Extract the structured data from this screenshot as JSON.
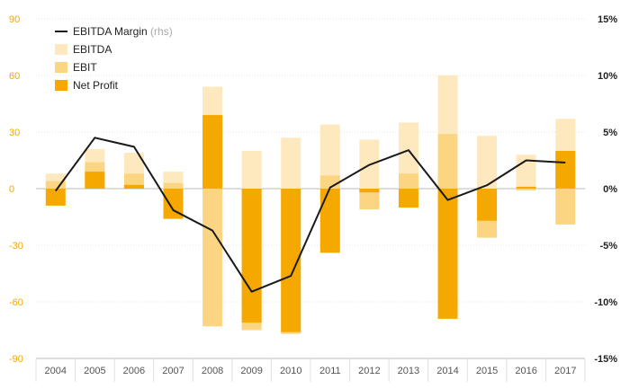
{
  "chart_data": {
    "type": "bar",
    "categories": [
      "2004",
      "2005",
      "2006",
      "2007",
      "2008",
      "2009",
      "2010",
      "2011",
      "2012",
      "2013",
      "2014",
      "2015",
      "2016",
      "2017"
    ],
    "series": [
      {
        "name": "EBITDA",
        "color": "#fde9bd",
        "values": [
          8,
          21,
          19,
          9,
          54,
          20,
          27,
          34,
          26,
          35,
          60,
          28,
          18,
          37
        ]
      },
      {
        "name": "EBIT",
        "color": "#fbd581",
        "values": [
          4,
          14,
          8,
          3,
          -73,
          -75,
          -77,
          7,
          -11,
          8,
          29,
          -26,
          -1,
          -19
        ]
      },
      {
        "name": "Net Profit",
        "color": "#f5a800",
        "values": [
          -9,
          9,
          2,
          -16,
          39,
          -71,
          -76,
          -34,
          -2,
          -10,
          -69,
          -17,
          1,
          20
        ]
      },
      {
        "name": "EBITDA Margin",
        "name_suffix": "(rhs)",
        "color": "#1a1a1a",
        "type": "line",
        "axis": "right",
        "values": [
          -0.2,
          4.5,
          3.7,
          -1.9,
          -3.7,
          -9.1,
          -7.7,
          0.1,
          2.1,
          3.4,
          -1.0,
          0.3,
          2.5,
          2.3
        ]
      }
    ],
    "y_left": {
      "ylim": [
        -90,
        90
      ],
      "ticks": [
        90,
        60,
        30,
        0,
        -30,
        -60,
        -90
      ],
      "color": "#f0a800"
    },
    "y_right": {
      "ylim": [
        -15,
        15
      ],
      "ticks": [
        "15%",
        "10%",
        "5%",
        "0%",
        "-5%",
        "-10%",
        "-15%"
      ],
      "color": "#222222"
    },
    "grid": true,
    "legend_position": "top-left",
    "title": "",
    "xlabel": "",
    "ylabel": ""
  }
}
